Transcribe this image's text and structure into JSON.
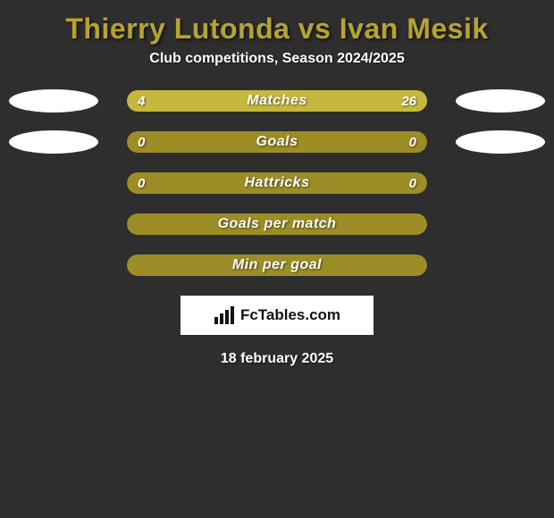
{
  "colors": {
    "background": "#2e2e2e",
    "title": "#b6a42f",
    "bar_empty": "#9c8d26",
    "bar_fill": "#c6b83f",
    "white": "#ffffff"
  },
  "header": {
    "title": "Thierry Lutonda vs Ivan Mesik",
    "subtitle": "Club competitions, Season 2024/2025"
  },
  "stats": [
    {
      "label": "Matches",
      "left_value": "4",
      "right_value": "26",
      "left_pct": 13.3,
      "right_pct": 86.7,
      "show_side_ellipses": true
    },
    {
      "label": "Goals",
      "left_value": "0",
      "right_value": "0",
      "left_pct": 0,
      "right_pct": 0,
      "show_side_ellipses": true
    },
    {
      "label": "Hattricks",
      "left_value": "0",
      "right_value": "0",
      "left_pct": 0,
      "right_pct": 0,
      "show_side_ellipses": false
    },
    {
      "label": "Goals per match",
      "left_value": "",
      "right_value": "",
      "left_pct": 0,
      "right_pct": 0,
      "show_side_ellipses": false
    },
    {
      "label": "Min per goal",
      "left_value": "",
      "right_value": "",
      "left_pct": 0,
      "right_pct": 0,
      "show_side_ellipses": false
    }
  ],
  "brand": {
    "text": "FcTables.com"
  },
  "footer": {
    "date": "18 february 2025"
  }
}
